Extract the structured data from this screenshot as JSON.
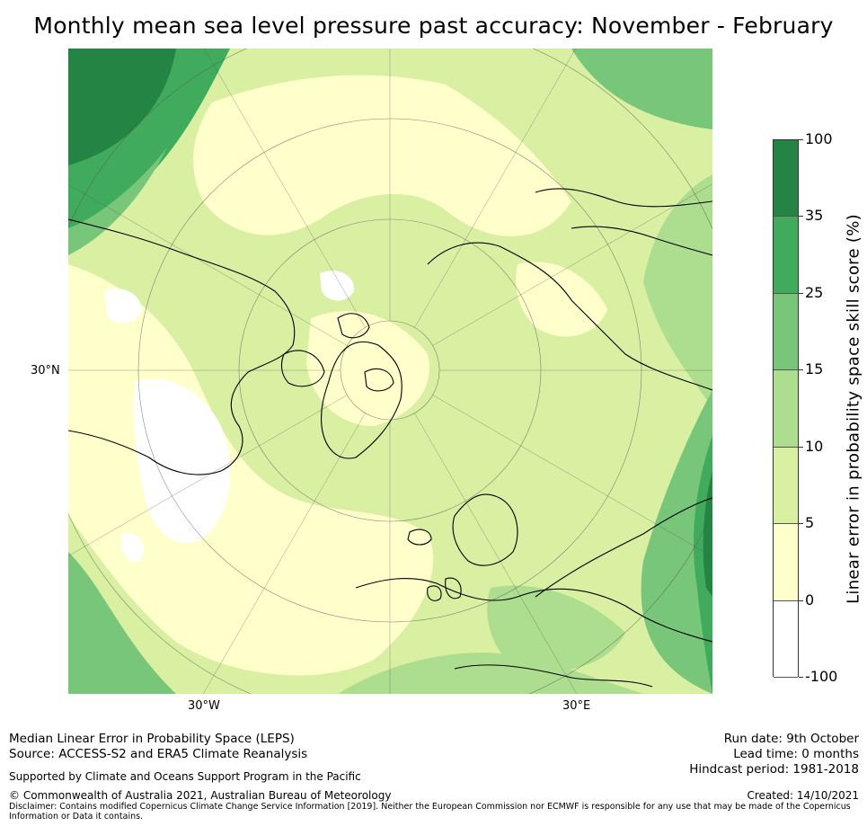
{
  "title": "Monthly mean sea level pressure past accuracy: November - February",
  "map": {
    "latitude_label": "30°N",
    "longitude_labels": [
      "30°W",
      "30°E"
    ],
    "colors": {
      "white": "#ffffff",
      "pale_yellow": "#ffffcc",
      "light_lime": "#d9f0a3",
      "light_green": "#addd8e",
      "mid_green": "#78c679",
      "green": "#41ab5d",
      "dark_green": "#238443",
      "coastline": "#000000",
      "graticule": "#555555"
    }
  },
  "colorbar": {
    "label": "Linear error in probability space skill score (%)",
    "ticks": [
      "100",
      "35",
      "25",
      "15",
      "10",
      "5",
      "0",
      "-100"
    ],
    "bins": [
      {
        "from": "35",
        "to": "100",
        "color": "#238443"
      },
      {
        "from": "25",
        "to": "35",
        "color": "#41ab5d"
      },
      {
        "from": "15",
        "to": "25",
        "color": "#78c679"
      },
      {
        "from": "10",
        "to": "15",
        "color": "#addd8e"
      },
      {
        "from": "5",
        "to": "10",
        "color": "#d9f0a3"
      },
      {
        "from": "0",
        "to": "5",
        "color": "#ffffcc"
      },
      {
        "from": "-100",
        "to": "0",
        "color": "#ffffff"
      }
    ]
  },
  "footer": {
    "left_line1": "Median Linear Error in Probability Space (LEPS)",
    "left_line2": "Source: ACCESS-S2 and ERA5 Climate Reanalysis",
    "support": "Supported by Climate and Oceans Support Program in the Pacific",
    "copyright": "© Commonwealth of Australia 2021, Australian Bureau of Meteorology",
    "disclaimer_line1": "Disclaimer: Contains modified Copernicus Climate Change Service Information [2019]. Neither the European Commission nor ECMWF is responsible for any use that may be made of the Copernicus",
    "disclaimer_line2": "Information or Data it contains.",
    "run_date": "Run date: 9th October",
    "lead_time": "Lead time: 0 months",
    "hindcast": "Hindcast period: 1981-2018",
    "created": "Created: 14/10/2021"
  }
}
